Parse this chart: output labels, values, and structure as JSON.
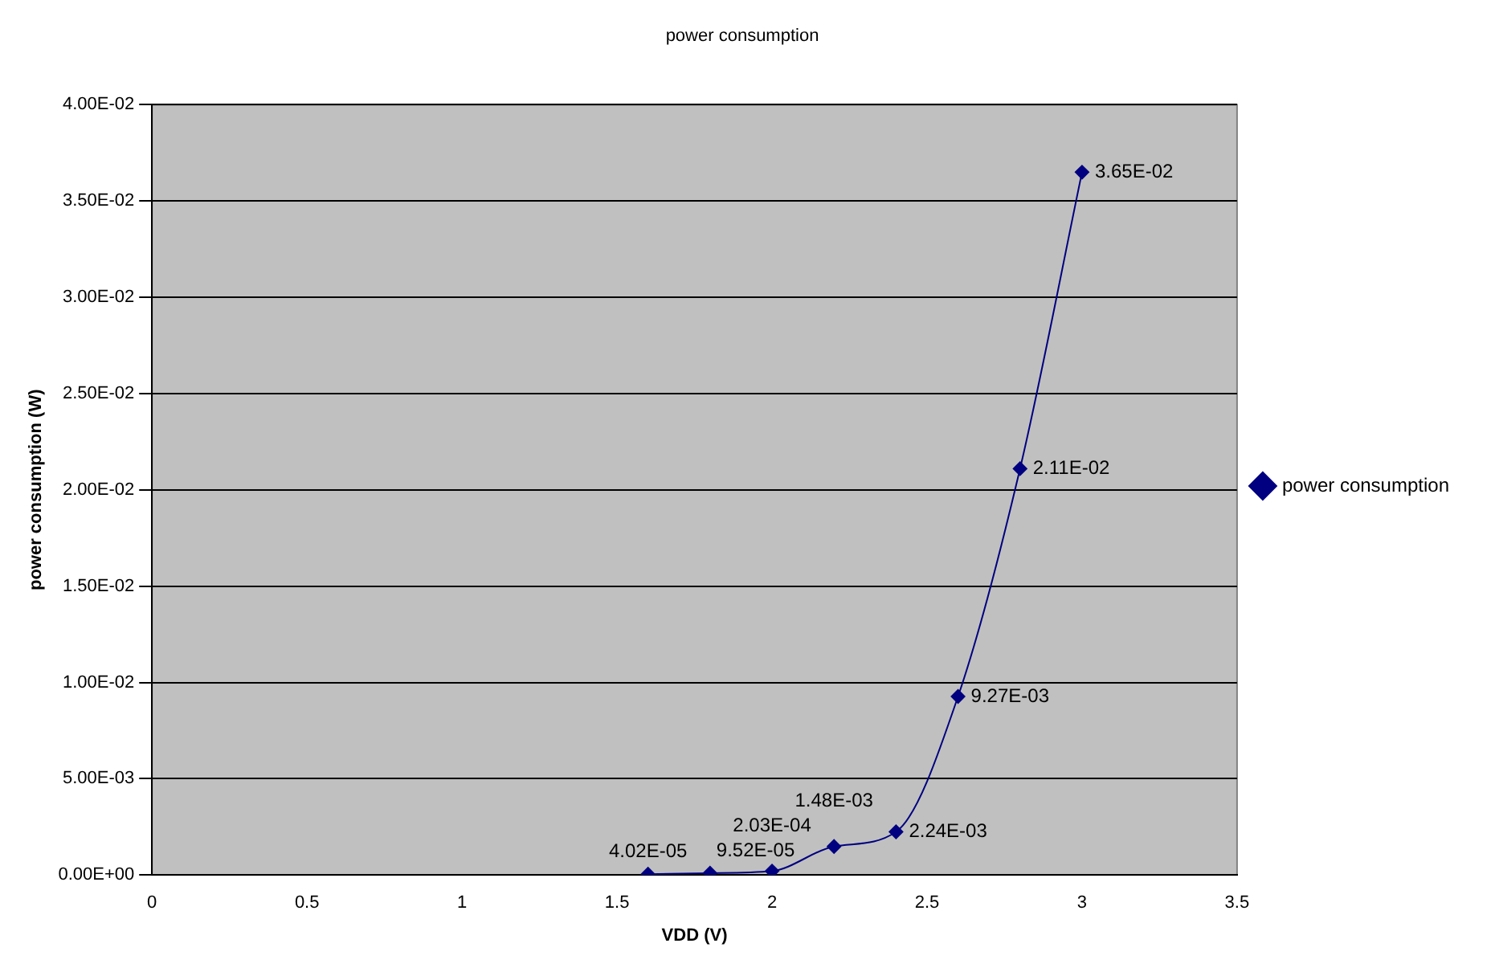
{
  "chart_data": {
    "type": "line",
    "title": "power consumption",
    "xlabel": "VDD (V)",
    "ylabel": "power consumption (W)",
    "x": [
      1.6,
      1.8,
      2.0,
      2.2,
      2.4,
      2.6,
      2.8,
      3.0
    ],
    "series": [
      {
        "name": "power consumption",
        "color": "#000080",
        "values": [
          4.02e-05,
          9.52e-05,
          0.000203,
          0.00148,
          0.00224,
          0.00927,
          0.0211,
          0.0365
        ],
        "value_labels": [
          "4.02E-05",
          "9.52E-05",
          "2.03E-04",
          "1.48E-03",
          "2.24E-03",
          "9.27E-03",
          "2.11E-02",
          "3.65E-02"
        ]
      }
    ],
    "data_labels": true,
    "marker": "diamond",
    "line_style": "solid",
    "grid": "y",
    "legend": "right",
    "xlim": [
      0,
      3.5
    ],
    "xticks": [
      0,
      0.5,
      1,
      1.5,
      2,
      2.5,
      3,
      3.5
    ],
    "ylim": [
      0,
      0.04
    ],
    "yticks": [
      {
        "value": 0,
        "label": "0.00E+00"
      },
      {
        "value": 0.005,
        "label": "5.00E-03"
      },
      {
        "value": 0.01,
        "label": "1.00E-02"
      },
      {
        "value": 0.015,
        "label": "1.50E-02"
      },
      {
        "value": 0.02,
        "label": "2.00E-02"
      },
      {
        "value": 0.025,
        "label": "2.50E-02"
      },
      {
        "value": 0.03,
        "label": "3.00E-02"
      },
      {
        "value": 0.035,
        "label": "3.50E-02"
      },
      {
        "value": 0.04,
        "label": "4.00E-02"
      }
    ]
  }
}
